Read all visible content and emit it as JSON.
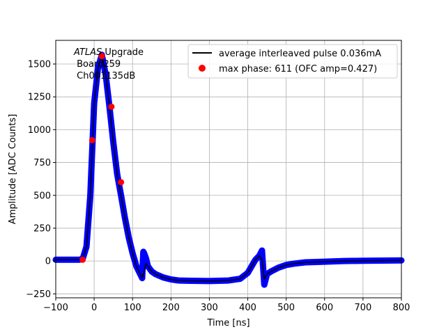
{
  "chart_data": {
    "type": "scatter",
    "xlabel": "Time [ns]",
    "ylabel": "Amplitude [ADC Counts]",
    "xlim": [
      -100,
      800
    ],
    "ylim": [
      -280,
      1680
    ],
    "xticks": [
      -100,
      0,
      100,
      200,
      300,
      400,
      500,
      600,
      700,
      800
    ],
    "yticks": [
      -250,
      0,
      250,
      500,
      750,
      1000,
      1250,
      1500
    ],
    "grid": true,
    "legend_position": "top-right",
    "annotation": {
      "italic": "ATLAS",
      "rest": " Upgrade",
      "line2": " Board259",
      "line3": " Ch001135dB"
    },
    "series": [
      {
        "name": "average interleaved pulse 0.036mA",
        "kind": "line",
        "color": "#000000",
        "x": [
          -100,
          -40,
          -30,
          -20,
          -10,
          0,
          10,
          20,
          30,
          40,
          50,
          60,
          70,
          80,
          90,
          100,
          110,
          120,
          125,
          130,
          135,
          140,
          150,
          160,
          180,
          200,
          220,
          250,
          300,
          350,
          380,
          400,
          410,
          420,
          430,
          437,
          443,
          450,
          460,
          480,
          500,
          520,
          550,
          600,
          650,
          700,
          800
        ],
        "y": [
          10,
          10,
          15,
          110,
          500,
          1200,
          1470,
          1570,
          1420,
          1170,
          900,
          660,
          500,
          330,
          180,
          60,
          -40,
          -100,
          -130,
          -80,
          -20,
          -40,
          -80,
          -100,
          -125,
          -140,
          -148,
          -150,
          -152,
          -148,
          -135,
          -90,
          -40,
          10,
          40,
          10,
          -140,
          -100,
          -80,
          -50,
          -30,
          -20,
          -10,
          -5,
          0,
          2,
          5
        ]
      },
      {
        "name": "",
        "kind": "scatter",
        "color": "#0000ff",
        "x": [
          -100,
          -40,
          -30,
          -20,
          -10,
          0,
          10,
          20,
          30,
          40,
          50,
          60,
          70,
          80,
          90,
          100,
          110,
          120,
          125,
          128,
          130,
          135,
          140,
          150,
          160,
          180,
          200,
          220,
          250,
          300,
          350,
          380,
          400,
          410,
          420,
          430,
          437,
          443,
          450,
          460,
          480,
          500,
          520,
          550,
          600,
          650,
          700,
          800
        ],
        "y": [
          10,
          10,
          15,
          110,
          500,
          1200,
          1470,
          1570,
          1420,
          1170,
          900,
          660,
          500,
          330,
          180,
          60,
          -40,
          -100,
          -130,
          70,
          60,
          20,
          -40,
          -80,
          -100,
          -125,
          -140,
          -148,
          -150,
          -152,
          -148,
          -135,
          -90,
          -40,
          10,
          40,
          80,
          -180,
          -100,
          -80,
          -50,
          -30,
          -20,
          -10,
          -5,
          0,
          2,
          5
        ]
      },
      {
        "name": "max phase: 611 (OFC amp=0.427)",
        "kind": "points",
        "color": "#ff0000",
        "x": [
          -30,
          -5,
          20,
          45,
          70
        ],
        "y": [
          10,
          920,
          1560,
          1175,
          600
        ]
      }
    ]
  }
}
